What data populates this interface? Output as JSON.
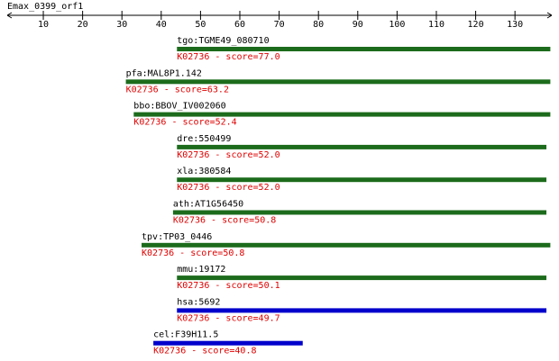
{
  "chart_data": {
    "type": "alignment",
    "title": "Emax_0399_orf1",
    "xlim": [
      1,
      139
    ],
    "xticks": [
      10,
      20,
      30,
      40,
      50,
      60,
      70,
      80,
      90,
      100,
      110,
      120,
      130
    ],
    "series": [
      {
        "name": "tgo:TGME49_080710",
        "annotation": "K02736 - score=77.0",
        "color": "#1c6b1c",
        "start": 44,
        "end": 139
      },
      {
        "name": "pfa:MAL8P1.142",
        "annotation": "K02736 - score=63.2",
        "color": "#1c6b1c",
        "start": 31,
        "end": 139
      },
      {
        "name": "bbo:BBOV_IV002060",
        "annotation": "K02736 - score=52.4",
        "color": "#1c6b1c",
        "start": 33,
        "end": 139
      },
      {
        "name": "dre:550499",
        "annotation": "K02736 - score=52.0",
        "color": "#1c6b1c",
        "start": 44,
        "end": 138
      },
      {
        "name": "xla:380584",
        "annotation": "K02736 - score=52.0",
        "color": "#1c6b1c",
        "start": 44,
        "end": 138
      },
      {
        "name": "ath:AT1G56450",
        "annotation": "K02736 - score=50.8",
        "color": "#1c6b1c",
        "start": 43,
        "end": 138
      },
      {
        "name": "tpv:TP03_0446",
        "annotation": "K02736 - score=50.8",
        "color": "#1c6b1c",
        "start": 35,
        "end": 139
      },
      {
        "name": "mmu:19172",
        "annotation": "K02736 - score=50.1",
        "color": "#1c6b1c",
        "start": 44,
        "end": 138
      },
      {
        "name": "hsa:5692",
        "annotation": "K02736 - score=49.7",
        "color": "#0000cc",
        "start": 44,
        "end": 138
      },
      {
        "name": "cel:F39H11.5",
        "annotation": "K02736 - score=40.8",
        "color": "#0000cc",
        "start": 38,
        "end": 76
      }
    ]
  }
}
